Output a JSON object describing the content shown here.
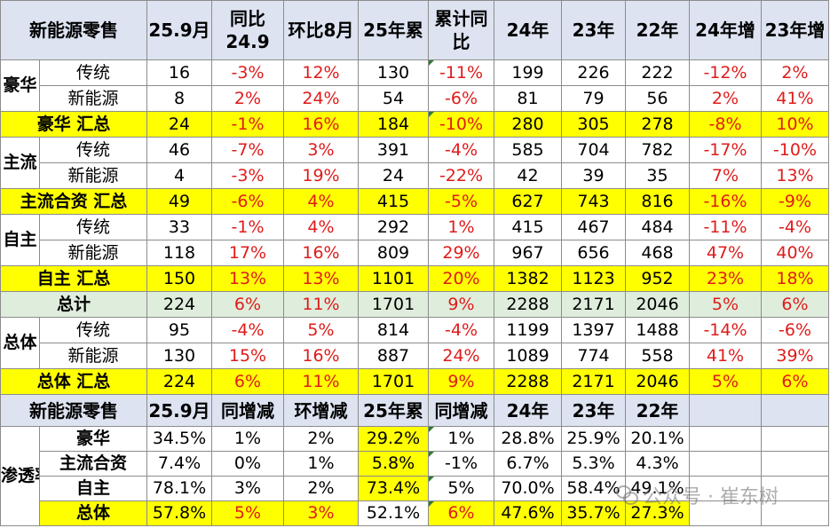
{
  "header": [
    "新能源零售",
    "25.9月",
    "同比24.9",
    "环比8月",
    "25年累",
    "累计同比",
    "24年",
    "23年",
    "22年",
    "24年增",
    "23年增"
  ],
  "groups": {
    "luxury": {
      "category": "豪华",
      "rows": [
        {
          "label": "传统",
          "values": [
            "16",
            "-3%",
            "12%",
            "130",
            "-11%",
            "199",
            "226",
            "222",
            "-12%",
            "2%"
          ]
        },
        {
          "label": "新能源",
          "values": [
            "8",
            "2%",
            "24%",
            "54",
            "-6%",
            "81",
            "79",
            "56",
            "2%",
            "41%"
          ]
        }
      ],
      "subtotal": {
        "label": "豪华 汇总",
        "values": [
          "24",
          "-1%",
          "16%",
          "184",
          "-10%",
          "280",
          "305",
          "278",
          "-8%",
          "10%"
        ]
      }
    },
    "mainstream": {
      "category": "主流",
      "rows": [
        {
          "label": "传统",
          "values": [
            "46",
            "-7%",
            "3%",
            "391",
            "-4%",
            "585",
            "704",
            "782",
            "-17%",
            "-10%"
          ]
        },
        {
          "label": "新能源",
          "values": [
            "4",
            "-3%",
            "19%",
            "24",
            "-22%",
            "42",
            "39",
            "35",
            "7%",
            "13%"
          ]
        }
      ],
      "subtotal": {
        "label": "主流合资 汇总",
        "values": [
          "49",
          "-6%",
          "4%",
          "415",
          "-5%",
          "627",
          "743",
          "816",
          "-16%",
          "-9%"
        ]
      }
    },
    "domestic": {
      "category": "自主",
      "rows": [
        {
          "label": "传统",
          "values": [
            "33",
            "-1%",
            "4%",
            "292",
            "1%",
            "415",
            "467",
            "484",
            "-11%",
            "-4%"
          ]
        },
        {
          "label": "新能源",
          "values": [
            "118",
            "17%",
            "16%",
            "809",
            "29%",
            "967",
            "656",
            "468",
            "47%",
            "40%"
          ]
        }
      ],
      "subtotal": {
        "label": "自主 汇总",
        "values": [
          "150",
          "13%",
          "13%",
          "1101",
          "20%",
          "1382",
          "1123",
          "952",
          "23%",
          "18%"
        ]
      }
    },
    "grand_total": {
      "label": "总计",
      "values": [
        "224",
        "6%",
        "11%",
        "1701",
        "9%",
        "2288",
        "2171",
        "2046",
        "5%",
        "6%"
      ]
    },
    "overall": {
      "category": "总体",
      "rows": [
        {
          "label": "传统",
          "values": [
            "95",
            "-4%",
            "5%",
            "814",
            "-4%",
            "1199",
            "1397",
            "1488",
            "-14%",
            "-6%"
          ]
        },
        {
          "label": "新能源",
          "values": [
            "130",
            "15%",
            "16%",
            "887",
            "24%",
            "1089",
            "774",
            "558",
            "41%",
            "39%"
          ]
        }
      ],
      "subtotal": {
        "label": "总体 汇总",
        "values": [
          "224",
          "6%",
          "11%",
          "1701",
          "9%",
          "2288",
          "2171",
          "2046",
          "5%",
          "6%"
        ]
      }
    }
  },
  "header2": [
    "新能源零售",
    "25.9月",
    "同增减",
    "环增减",
    "25年累",
    "同增减",
    "24年",
    "23年",
    "22年",
    "",
    ""
  ],
  "penetration": {
    "category": "渗透率",
    "rows": [
      {
        "label": "豪华",
        "values": [
          "34.5%",
          "1%",
          "2%",
          "29.2%",
          "1%",
          "28.8%",
          "25.9%",
          "20.1%",
          "",
          ""
        ]
      },
      {
        "label": "主流合资",
        "values": [
          "7.4%",
          "0%",
          "1%",
          "5.8%",
          "-1%",
          "6.7%",
          "5.3%",
          "4.3%",
          "",
          ""
        ]
      },
      {
        "label": "自主",
        "values": [
          "78.1%",
          "3%",
          "2%",
          "73.4%",
          "5%",
          "70.0%",
          "58.4%",
          "49.1%",
          "",
          ""
        ]
      },
      {
        "label": "总体",
        "values": [
          "57.8%",
          "5%",
          "3%",
          "52.1%",
          "6%",
          "47.6%",
          "35.7%",
          "27.3%",
          "",
          ""
        ]
      }
    ]
  },
  "watermark": "公众号 · 崔东树",
  "colors": {
    "header_bg": "#dde3f1",
    "highlight": "#ffff00",
    "total_bg": "#dfeedc",
    "negative_red": "#e01b1b",
    "comment_marker": "#2e7d32"
  }
}
